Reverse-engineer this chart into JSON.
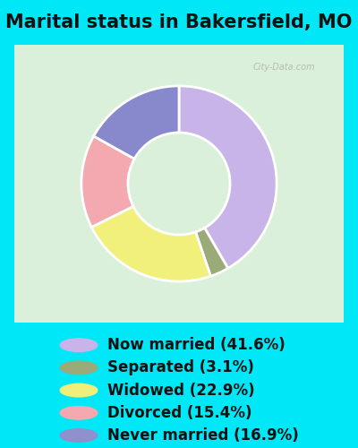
{
  "title": "Marital status in Bakersfield, MO",
  "slices": [
    41.6,
    3.1,
    22.9,
    15.4,
    16.9
  ],
  "labels": [
    "Now married (41.6%)",
    "Separated (3.1%)",
    "Widowed (22.9%)",
    "Divorced (15.4%)",
    "Never married (16.9%)"
  ],
  "colors": [
    "#c8b4e8",
    "#9aaa78",
    "#f0f07a",
    "#f4a8b0",
    "#8888cc"
  ],
  "legend_dot_colors": [
    "#c8b4e8",
    "#9aaa78",
    "#f0ef7a",
    "#f4a8b0",
    "#9090cc"
  ],
  "bg_cyan": "#00e8f8",
  "bg_chart_color1": "#c8e8c8",
  "bg_chart_color2": "#e8f8e8",
  "watermark": "City-Data.com",
  "title_fontsize": 15,
  "legend_fontsize": 12,
  "startangle": 90
}
